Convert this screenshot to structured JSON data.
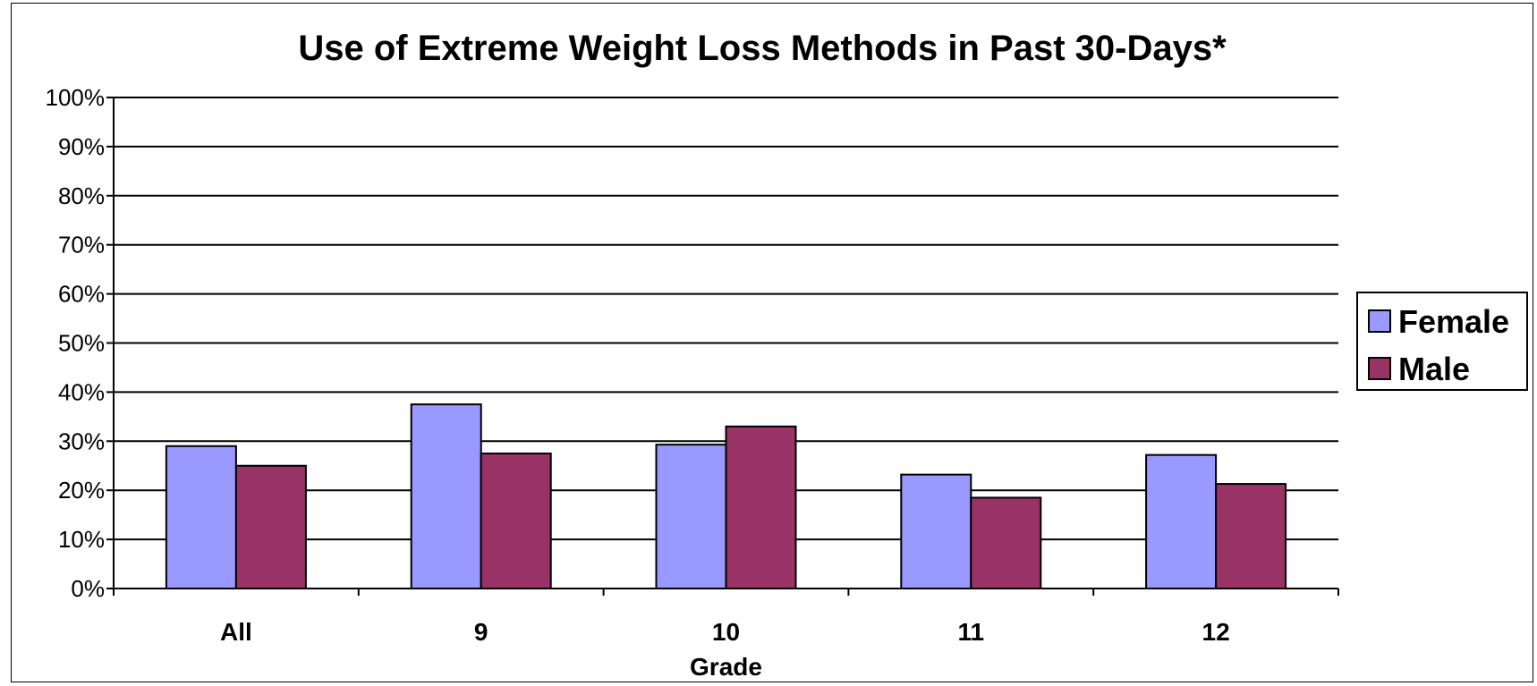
{
  "chart_data": {
    "type": "bar",
    "title": "Use of Extreme Weight Loss Methods in Past 30-Days*",
    "xlabel": "Grade",
    "ylabel": "",
    "categories": [
      "All",
      "9",
      "10",
      "11",
      "12"
    ],
    "series": [
      {
        "name": "Female",
        "color": "#9999ff",
        "values": [
          29,
          37.5,
          29.3,
          23.2,
          27.2
        ]
      },
      {
        "name": "Male",
        "color": "#993366",
        "values": [
          25,
          27.5,
          33,
          18.5,
          21.3
        ]
      }
    ],
    "ylim": [
      0,
      100
    ],
    "yticks": [
      "0%",
      "10%",
      "20%",
      "30%",
      "40%",
      "50%",
      "60%",
      "70%",
      "80%",
      "90%",
      "100%"
    ],
    "grid": true,
    "legend": "right"
  }
}
